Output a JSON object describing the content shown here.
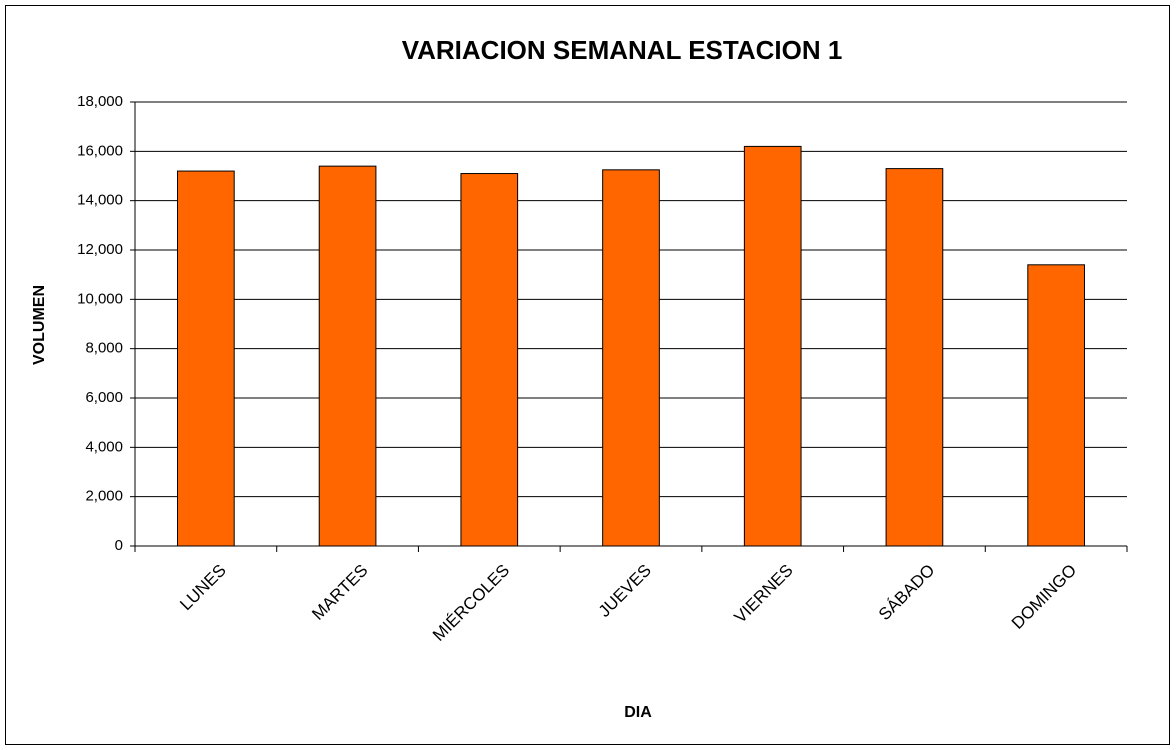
{
  "chart_data": {
    "type": "bar",
    "title": "VARIACION SEMANAL ESTACION 1",
    "x_label": "DIA",
    "y_label": "VOLUMEN",
    "categories": [
      "LUNES",
      "MARTES",
      "MIÉRCOLES",
      "JUEVES",
      "VIERNES",
      "SÁBADO",
      "DOMINGO"
    ],
    "values": [
      15200,
      15400,
      15100,
      15250,
      16200,
      15300,
      11400
    ],
    "color": "#ff6600",
    "ylim": [
      0,
      18000
    ],
    "yticks": [
      0,
      {
        "value": 2000,
        "label": "2,000"
      },
      {
        "value": 4000,
        "label": "4,000"
      },
      {
        "value": 6000,
        "label": "6,000"
      },
      {
        "value": 8000,
        "label": "8,000"
      },
      {
        "value": 10000,
        "label": "10,000"
      },
      {
        "value": 12000,
        "label": "12,000"
      },
      {
        "value": 14000,
        "label": "14,000"
      },
      {
        "value": 16000,
        "label": "16,000"
      },
      {
        "value": 18000,
        "label": "18,000"
      }
    ],
    "grid": true
  }
}
